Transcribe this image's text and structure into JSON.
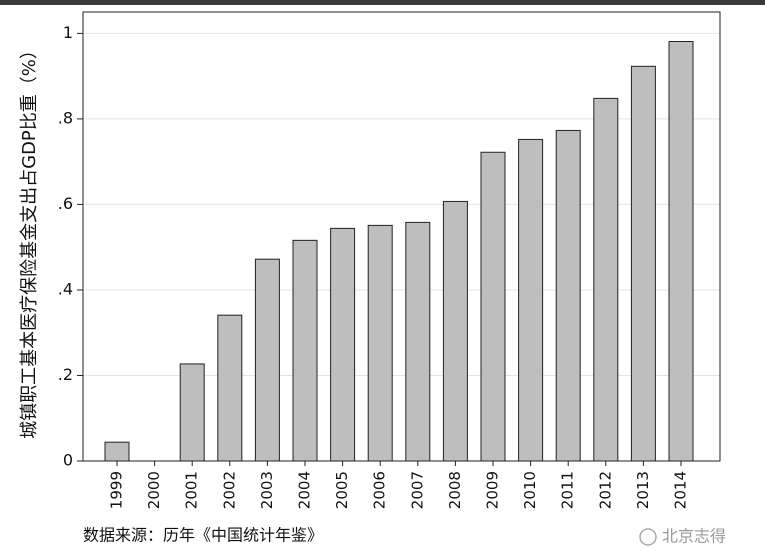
{
  "chart_data": {
    "type": "bar",
    "y_label": "城镇职工基本医疗保险基金支出占GDP比重（%）",
    "source": "数据来源：历年《中国统计年鉴》",
    "watermark": "北京志得",
    "categories": [
      "1999",
      "2000",
      "2001",
      "2002",
      "2003",
      "2004",
      "2005",
      "2006",
      "2007",
      "2008",
      "2009",
      "2010",
      "2011",
      "2012",
      "2013",
      "2014"
    ],
    "values": [
      0.044,
      null,
      0.227,
      0.341,
      0.472,
      0.516,
      0.544,
      0.551,
      0.558,
      0.607,
      0.722,
      0.752,
      0.773,
      0.848,
      0.923,
      0.981
    ],
    "color": "#bebebe",
    "ylim": [
      0,
      1.05
    ],
    "yticks": [
      0,
      {
        "value": 0.2,
        "label": ".2"
      },
      {
        "value": 0.4,
        "label": ".4"
      },
      {
        "value": 0.6,
        "label": ".6"
      },
      {
        "value": 0.8,
        "label": ".8"
      },
      1
    ],
    "grid": true
  }
}
